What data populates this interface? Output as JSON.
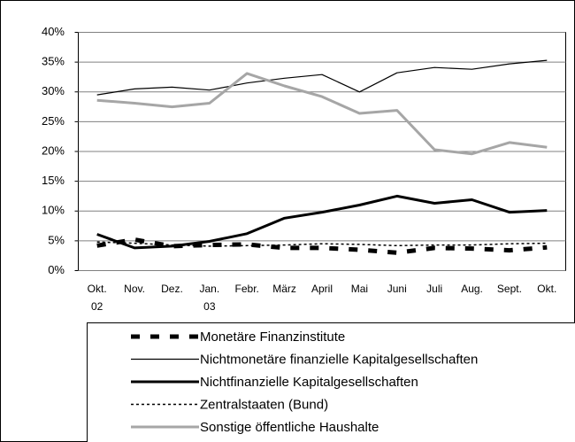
{
  "chart_data": {
    "type": "line",
    "categories": [
      "Okt. 02",
      "Nov.",
      "Dez.",
      "Jan. 03",
      "Febr.",
      "März",
      "April",
      "Mai",
      "Juni",
      "Juli",
      "Aug.",
      "Sept.",
      "Okt."
    ],
    "series": [
      {
        "name": "Monetäre Finanzinstitute",
        "color": "#000000",
        "line_style": "dashed",
        "values": [
          4.2,
          5.2,
          4.1,
          4.3,
          4.4,
          3.8,
          3.8,
          3.5,
          3.0,
          3.8,
          3.7,
          3.4,
          3.9
        ]
      },
      {
        "name": "Nichtmonetäre finanzielle Kapitalgesellschaften",
        "color": "#000000",
        "line_style": "thin",
        "values": [
          29.5,
          30.5,
          30.8,
          30.3,
          31.5,
          32.3,
          32.9,
          30.0,
          33.2,
          34.1,
          33.8,
          34.7,
          35.3
        ]
      },
      {
        "name": "Nichtfinanzielle Kapitalgesellschaften",
        "color": "#000000",
        "line_style": "thick",
        "values": [
          6.1,
          3.8,
          4.1,
          4.9,
          6.2,
          8.8,
          9.8,
          11.0,
          12.5,
          11.3,
          11.9,
          9.8,
          10.1
        ]
      },
      {
        "name": "Zentralstaaten (Bund)",
        "color": "#000000",
        "line_style": "dotted",
        "values": [
          4.8,
          4.6,
          4.3,
          4.1,
          4.2,
          4.3,
          4.5,
          4.4,
          4.2,
          4.3,
          4.3,
          4.5,
          4.6
        ]
      },
      {
        "name": "Sonstige öffentliche Haushalte",
        "color": "#a6a6a6",
        "line_style": "thick",
        "values": [
          28.6,
          28.1,
          27.5,
          28.1,
          33.1,
          31.0,
          29.2,
          26.4,
          26.9,
          20.3,
          19.6,
          21.5,
          20.7
        ]
      }
    ],
    "ylim": [
      0,
      40
    ],
    "yticks": [
      {
        "value": 0,
        "label": "0%"
      },
      {
        "value": 5,
        "label": "5%"
      },
      {
        "value": 10,
        "label": "10%"
      },
      {
        "value": 15,
        "label": "15%"
      },
      {
        "value": 20,
        "label": "20%"
      },
      {
        "value": 25,
        "label": "25%"
      },
      {
        "value": 30,
        "label": "30%"
      },
      {
        "value": 35,
        "label": "35%"
      },
      {
        "value": 40,
        "label": "40%"
      }
    ],
    "grid": true
  }
}
